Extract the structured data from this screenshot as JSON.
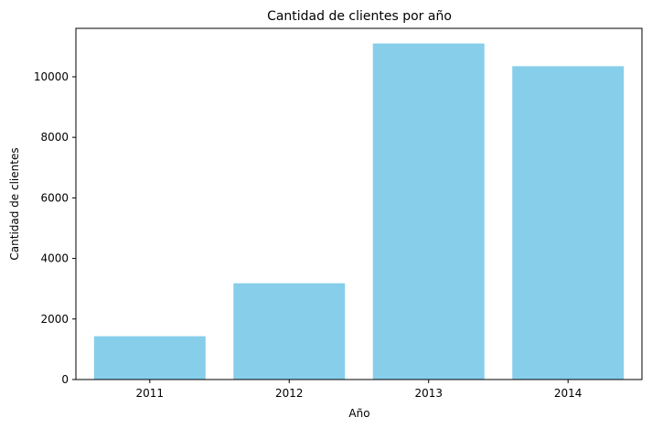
{
  "chart_data": {
    "type": "bar",
    "title": "Cantidad de clientes por año",
    "xlabel": "Año",
    "ylabel": "Cantidad de clientes",
    "categories": [
      "2011",
      "2012",
      "2013",
      "2014"
    ],
    "values": [
      1430,
      3180,
      11100,
      10350
    ],
    "ylim": [
      0,
      11600
    ],
    "yticks": [
      0,
      2000,
      4000,
      6000,
      8000,
      10000
    ],
    "bar_color": "#87ceeb",
    "grid": false,
    "legend": "none"
  }
}
